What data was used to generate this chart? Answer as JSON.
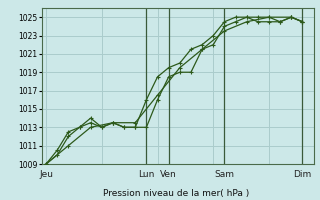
{
  "bg_color": "#cce8e8",
  "grid_color": "#aacccc",
  "line_color": "#2d5a1b",
  "title": "Pression niveau de la mer( hPa )",
  "ylim": [
    1009,
    1026
  ],
  "yticks": [
    1009,
    1011,
    1013,
    1015,
    1017,
    1019,
    1021,
    1023,
    1025
  ],
  "day_labels": [
    "Jeu",
    "Lun",
    "Ven",
    "Sam",
    "Dim"
  ],
  "day_positions": [
    0.0,
    4.5,
    5.5,
    8.0,
    11.5
  ],
  "xlim": [
    -0.2,
    12.0
  ],
  "vlines_x": [
    4.5,
    5.5,
    8.0,
    11.5
  ],
  "line1_x": [
    0,
    0.5,
    1.0,
    1.5,
    2.0,
    2.5,
    3.0,
    3.5,
    4.0,
    4.5,
    5.0,
    5.5,
    6.0,
    6.5,
    7.0,
    7.5,
    8.0,
    8.5,
    9.0,
    9.5,
    10.0,
    10.5,
    11.0,
    11.5
  ],
  "line1_y": [
    1009.0,
    1010.5,
    1012.5,
    1013.0,
    1013.5,
    1013.0,
    1013.5,
    1013.0,
    1013.0,
    1013.0,
    1016.0,
    1018.5,
    1019.0,
    1019.0,
    1021.5,
    1022.0,
    1024.0,
    1024.5,
    1025.0,
    1025.0,
    1025.0,
    1024.5,
    1025.0,
    1024.5
  ],
  "line2_x": [
    0,
    0.5,
    1.0,
    1.5,
    2.0,
    2.5,
    3.0,
    3.5,
    4.0,
    4.5,
    5.0,
    5.5,
    6.0,
    6.5,
    7.0,
    7.5,
    8.0,
    8.5,
    9.0,
    9.5,
    10.0,
    10.5,
    11.0,
    11.5
  ],
  "line2_y": [
    1009.0,
    1010.0,
    1012.0,
    1013.0,
    1014.0,
    1013.0,
    1013.5,
    1013.0,
    1013.0,
    1016.0,
    1018.5,
    1019.5,
    1020.0,
    1021.5,
    1022.0,
    1023.0,
    1024.5,
    1025.0,
    1025.0,
    1024.5,
    1024.5,
    1024.5,
    1025.0,
    1024.5
  ],
  "line3_x": [
    0,
    1.0,
    2.0,
    3.0,
    4.0,
    5.0,
    6.0,
    7.0,
    8.0,
    9.0,
    10.0,
    11.0,
    11.5
  ],
  "line3_y": [
    1009.0,
    1011.0,
    1013.0,
    1013.5,
    1013.5,
    1016.5,
    1019.5,
    1021.5,
    1023.5,
    1024.5,
    1025.0,
    1025.0,
    1024.5
  ],
  "tick_fontsize": 5.5,
  "label_fontsize": 6.5,
  "lw": 0.9,
  "ms": 2.5
}
